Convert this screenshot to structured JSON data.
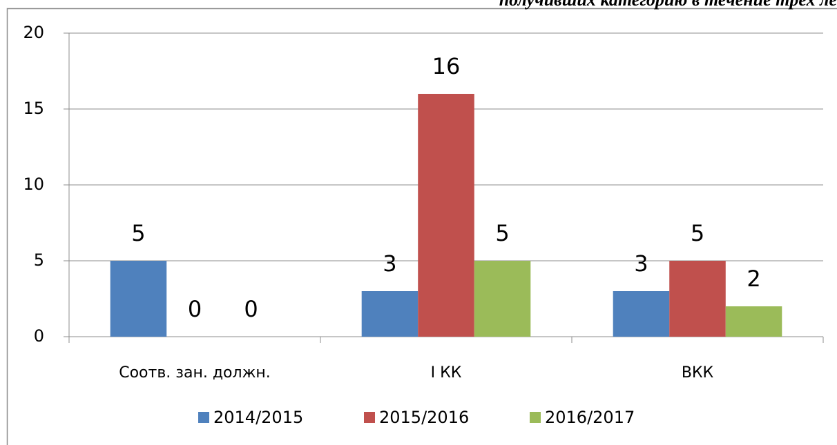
{
  "chart_data": {
    "type": "bar",
    "title": "получивших категорию в течение трех ле",
    "categories": [
      "Соотв. зан. должн.",
      "I КК",
      "ВКК"
    ],
    "series": [
      {
        "name": "2014/2015",
        "color": "#4f81bd",
        "values": [
          5,
          3,
          3
        ]
      },
      {
        "name": "2015/2016",
        "color": "#c0504d",
        "values": [
          0,
          16,
          5
        ]
      },
      {
        "name": "2016/2017",
        "color": "#9bbb59",
        "values": [
          0,
          5,
          2
        ]
      }
    ],
    "ylim": [
      0,
      20
    ],
    "yticks": [
      0,
      5,
      10,
      15,
      20
    ],
    "grid": true,
    "legend": "bottom"
  }
}
